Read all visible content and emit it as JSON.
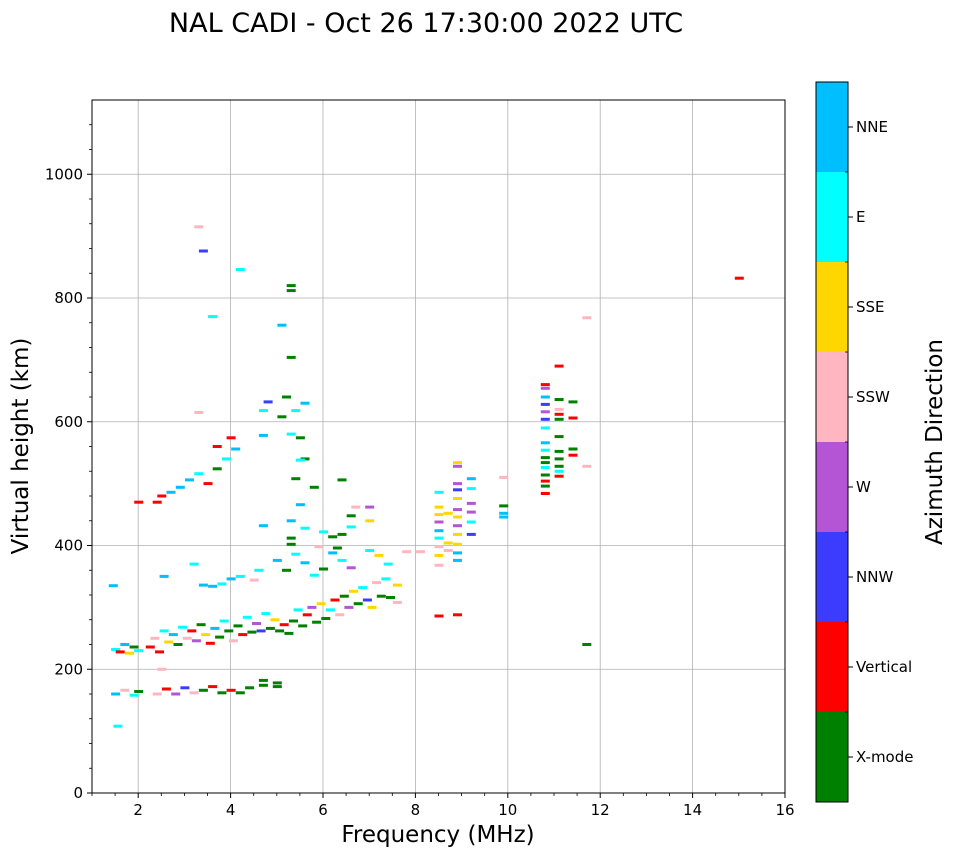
{
  "chart_data": {
    "type": "scatter",
    "title": "NAL CADI - Oct 26 17:30:00 2022 UTC",
    "xlabel": "Frequency (MHz)",
    "ylabel": "Virtual height (km)",
    "xlim": [
      1,
      16
    ],
    "ylim": [
      0,
      1120
    ],
    "xticks": [
      2,
      4,
      6,
      8,
      10,
      12,
      14,
      16
    ],
    "yticks": [
      0,
      200,
      400,
      600,
      800,
      1000
    ],
    "grid": true,
    "colorbar": {
      "label": "Azimuth Direction",
      "entries": [
        {
          "name": "X-mode",
          "color": "#008000"
        },
        {
          "name": "Vertical",
          "color": "#ff0000"
        },
        {
          "name": "NNW",
          "color": "#3c3cff"
        },
        {
          "name": "W",
          "color": "#b455d6"
        },
        {
          "name": "SSW",
          "color": "#ffb6c1"
        },
        {
          "name": "SSE",
          "color": "#ffd700"
        },
        {
          "name": "E",
          "color": "#00ffff"
        },
        {
          "name": "NNE",
          "color": "#00bfff"
        }
      ]
    },
    "points": [
      {
        "f": 1.5,
        "h": 232,
        "d": "E"
      },
      {
        "f": 1.6,
        "h": 228,
        "d": "Vertical"
      },
      {
        "f": 1.7,
        "h": 240,
        "d": "NNE"
      },
      {
        "f": 1.8,
        "h": 226,
        "d": "SSE"
      },
      {
        "f": 1.9,
        "h": 236,
        "d": "X-mode"
      },
      {
        "f": 2.0,
        "h": 230,
        "d": "E"
      },
      {
        "f": 1.5,
        "h": 160,
        "d": "NNE"
      },
      {
        "f": 1.7,
        "h": 166,
        "d": "SSW"
      },
      {
        "f": 1.9,
        "h": 158,
        "d": "E"
      },
      {
        "f": 2.0,
        "h": 164,
        "d": "X-mode"
      },
      {
        "f": 1.45,
        "h": 335,
        "d": "NNE"
      },
      {
        "f": 1.55,
        "h": 108,
        "d": "E"
      },
      {
        "f": 2.0,
        "h": 470,
        "d": "Vertical"
      },
      {
        "f": 2.25,
        "h": 236,
        "d": "Vertical"
      },
      {
        "f": 2.35,
        "h": 250,
        "d": "SSW"
      },
      {
        "f": 2.45,
        "h": 228,
        "d": "Vertical"
      },
      {
        "f": 2.55,
        "h": 262,
        "d": "E"
      },
      {
        "f": 2.65,
        "h": 244,
        "d": "SSE"
      },
      {
        "f": 2.75,
        "h": 256,
        "d": "NNE"
      },
      {
        "f": 2.85,
        "h": 240,
        "d": "X-mode"
      },
      {
        "f": 2.95,
        "h": 268,
        "d": "E"
      },
      {
        "f": 3.05,
        "h": 250,
        "d": "SSW"
      },
      {
        "f": 3.15,
        "h": 262,
        "d": "Vertical"
      },
      {
        "f": 3.25,
        "h": 246,
        "d": "W"
      },
      {
        "f": 3.35,
        "h": 272,
        "d": "X-mode"
      },
      {
        "f": 3.45,
        "h": 256,
        "d": "SSE"
      },
      {
        "f": 3.55,
        "h": 242,
        "d": "Vertical"
      },
      {
        "f": 3.65,
        "h": 266,
        "d": "NNE"
      },
      {
        "f": 3.75,
        "h": 252,
        "d": "X-mode"
      },
      {
        "f": 3.85,
        "h": 278,
        "d": "E"
      },
      {
        "f": 3.95,
        "h": 262,
        "d": "X-mode"
      },
      {
        "f": 4.05,
        "h": 246,
        "d": "SSW"
      },
      {
        "f": 4.15,
        "h": 270,
        "d": "X-mode"
      },
      {
        "f": 4.25,
        "h": 256,
        "d": "Vertical"
      },
      {
        "f": 4.35,
        "h": 284,
        "d": "E"
      },
      {
        "f": 4.45,
        "h": 260,
        "d": "X-mode"
      },
      {
        "f": 4.55,
        "h": 274,
        "d": "W"
      },
      {
        "f": 4.65,
        "h": 262,
        "d": "NNW"
      },
      {
        "f": 4.75,
        "h": 290,
        "d": "E"
      },
      {
        "f": 4.85,
        "h": 266,
        "d": "X-mode"
      },
      {
        "f": 4.95,
        "h": 280,
        "d": "SSE"
      },
      {
        "f": 5.05,
        "h": 262,
        "d": "X-mode"
      },
      {
        "f": 5.15,
        "h": 272,
        "d": "Vertical"
      },
      {
        "f": 5.25,
        "h": 258,
        "d": "X-mode"
      },
      {
        "f": 5.35,
        "h": 278,
        "d": "X-mode"
      },
      {
        "f": 5.45,
        "h": 296,
        "d": "E"
      },
      {
        "f": 5.55,
        "h": 270,
        "d": "X-mode"
      },
      {
        "f": 5.65,
        "h": 288,
        "d": "Vertical"
      },
      {
        "f": 5.75,
        "h": 300,
        "d": "W"
      },
      {
        "f": 5.85,
        "h": 276,
        "d": "X-mode"
      },
      {
        "f": 5.95,
        "h": 306,
        "d": "SSE"
      },
      {
        "f": 6.05,
        "h": 282,
        "d": "X-mode"
      },
      {
        "f": 6.15,
        "h": 296,
        "d": "E"
      },
      {
        "f": 6.25,
        "h": 312,
        "d": "Vertical"
      },
      {
        "f": 6.35,
        "h": 288,
        "d": "SSW"
      },
      {
        "f": 6.45,
        "h": 318,
        "d": "X-mode"
      },
      {
        "f": 6.55,
        "h": 300,
        "d": "W"
      },
      {
        "f": 6.65,
        "h": 326,
        "d": "SSE"
      },
      {
        "f": 6.75,
        "h": 306,
        "d": "X-mode"
      },
      {
        "f": 6.85,
        "h": 332,
        "d": "E"
      },
      {
        "f": 6.95,
        "h": 312,
        "d": "NNW"
      },
      {
        "f": 7.05,
        "h": 300,
        "d": "SSE"
      },
      {
        "f": 7.15,
        "h": 340,
        "d": "SSW"
      },
      {
        "f": 7.25,
        "h": 318,
        "d": "X-mode"
      },
      {
        "f": 7.35,
        "h": 346,
        "d": "E"
      },
      {
        "f": 7.45,
        "h": 316,
        "d": "X-mode"
      },
      {
        "f": 7.6,
        "h": 336,
        "d": "SSE"
      },
      {
        "f": 7.6,
        "h": 308,
        "d": "SSW"
      },
      {
        "f": 2.55,
        "h": 350,
        "d": "NNE"
      },
      {
        "f": 3.2,
        "h": 370,
        "d": "E"
      },
      {
        "f": 3.4,
        "h": 336,
        "d": "NNE"
      },
      {
        "f": 3.6,
        "h": 334,
        "d": "NNE"
      },
      {
        "f": 3.8,
        "h": 338,
        "d": "E"
      },
      {
        "f": 4.0,
        "h": 346,
        "d": "NNE"
      },
      {
        "f": 4.2,
        "h": 350,
        "d": "E"
      },
      {
        "f": 4.5,
        "h": 344,
        "d": "SSW"
      },
      {
        "f": 4.6,
        "h": 360,
        "d": "E"
      },
      {
        "f": 5.0,
        "h": 376,
        "d": "NNE"
      },
      {
        "f": 5.2,
        "h": 360,
        "d": "X-mode"
      },
      {
        "f": 5.4,
        "h": 386,
        "d": "E"
      },
      {
        "f": 5.6,
        "h": 372,
        "d": "NNE"
      },
      {
        "f": 5.8,
        "h": 352,
        "d": "E"
      },
      {
        "f": 6.0,
        "h": 362,
        "d": "X-mode"
      },
      {
        "f": 6.2,
        "h": 388,
        "d": "NNE"
      },
      {
        "f": 6.4,
        "h": 376,
        "d": "E"
      },
      {
        "f": 6.6,
        "h": 364,
        "d": "W"
      },
      {
        "f": 7.0,
        "h": 392,
        "d": "E"
      },
      {
        "f": 7.2,
        "h": 384,
        "d": "SSE"
      },
      {
        "f": 7.4,
        "h": 370,
        "d": "E"
      },
      {
        "f": 7.8,
        "h": 390,
        "d": "SSW"
      },
      {
        "f": 8.1,
        "h": 390,
        "d": "SSW"
      },
      {
        "f": 2.4,
        "h": 160,
        "d": "SSW"
      },
      {
        "f": 2.6,
        "h": 168,
        "d": "Vertical"
      },
      {
        "f": 2.8,
        "h": 160,
        "d": "W"
      },
      {
        "f": 3.0,
        "h": 170,
        "d": "NNW"
      },
      {
        "f": 3.2,
        "h": 162,
        "d": "SSW"
      },
      {
        "f": 3.4,
        "h": 166,
        "d": "X-mode"
      },
      {
        "f": 3.6,
        "h": 172,
        "d": "Vertical"
      },
      {
        "f": 3.8,
        "h": 162,
        "d": "X-mode"
      },
      {
        "f": 4.0,
        "h": 166,
        "d": "Vertical"
      },
      {
        "f": 4.2,
        "h": 162,
        "d": "X-mode"
      },
      {
        "f": 4.4,
        "h": 170,
        "d": "X-mode"
      },
      {
        "f": 4.7,
        "h": 174,
        "d": "X-mode"
      },
      {
        "f": 5.0,
        "h": 172,
        "d": "X-mode"
      },
      {
        "f": 4.7,
        "h": 182,
        "d": "X-mode"
      },
      {
        "f": 5.0,
        "h": 178,
        "d": "X-mode"
      },
      {
        "f": 2.5,
        "h": 200,
        "d": "SSW"
      },
      {
        "f": 2.4,
        "h": 470,
        "d": "Vertical"
      },
      {
        "f": 2.5,
        "h": 480,
        "d": "Vertical"
      },
      {
        "f": 2.7,
        "h": 486,
        "d": "NNE"
      },
      {
        "f": 2.9,
        "h": 494,
        "d": "NNE"
      },
      {
        "f": 3.1,
        "h": 506,
        "d": "NNE"
      },
      {
        "f": 3.3,
        "h": 516,
        "d": "E"
      },
      {
        "f": 3.5,
        "h": 500,
        "d": "Vertical"
      },
      {
        "f": 3.7,
        "h": 524,
        "d": "X-mode"
      },
      {
        "f": 3.9,
        "h": 540,
        "d": "E"
      },
      {
        "f": 4.1,
        "h": 556,
        "d": "NNE"
      },
      {
        "f": 3.7,
        "h": 560,
        "d": "Vertical"
      },
      {
        "f": 4.0,
        "h": 574,
        "d": "Vertical"
      },
      {
        "f": 3.3,
        "h": 615,
        "d": "SSW"
      },
      {
        "f": 3.4,
        "h": 876,
        "d": "NNW"
      },
      {
        "f": 3.3,
        "h": 915,
        "d": "SSW"
      },
      {
        "f": 4.2,
        "h": 846,
        "d": "E"
      },
      {
        "f": 3.6,
        "h": 770,
        "d": "E"
      },
      {
        "f": 4.7,
        "h": 618,
        "d": "E"
      },
      {
        "f": 4.8,
        "h": 632,
        "d": "NNW"
      },
      {
        "f": 4.7,
        "h": 578,
        "d": "NNE"
      },
      {
        "f": 5.1,
        "h": 608,
        "d": "X-mode"
      },
      {
        "f": 5.2,
        "h": 640,
        "d": "X-mode"
      },
      {
        "f": 5.4,
        "h": 618,
        "d": "E"
      },
      {
        "f": 5.6,
        "h": 630,
        "d": "NNE"
      },
      {
        "f": 5.3,
        "h": 580,
        "d": "E"
      },
      {
        "f": 5.5,
        "h": 574,
        "d": "X-mode"
      },
      {
        "f": 5.1,
        "h": 756,
        "d": "NNE"
      },
      {
        "f": 5.3,
        "h": 704,
        "d": "X-mode"
      },
      {
        "f": 5.3,
        "h": 812,
        "d": "X-mode"
      },
      {
        "f": 5.3,
        "h": 820,
        "d": "X-mode"
      },
      {
        "f": 5.6,
        "h": 540,
        "d": "X-mode"
      },
      {
        "f": 5.5,
        "h": 538,
        "d": "E"
      },
      {
        "f": 5.4,
        "h": 508,
        "d": "X-mode"
      },
      {
        "f": 5.8,
        "h": 494,
        "d": "X-mode"
      },
      {
        "f": 5.5,
        "h": 466,
        "d": "NNE"
      },
      {
        "f": 5.3,
        "h": 440,
        "d": "NNE"
      },
      {
        "f": 5.6,
        "h": 428,
        "d": "E"
      },
      {
        "f": 5.3,
        "h": 412,
        "d": "X-mode"
      },
      {
        "f": 5.3,
        "h": 402,
        "d": "X-mode"
      },
      {
        "f": 6.0,
        "h": 422,
        "d": "E"
      },
      {
        "f": 6.2,
        "h": 414,
        "d": "X-mode"
      },
      {
        "f": 6.4,
        "h": 506,
        "d": "X-mode"
      },
      {
        "f": 6.7,
        "h": 462,
        "d": "SSW"
      },
      {
        "f": 7.0,
        "h": 462,
        "d": "W"
      },
      {
        "f": 6.6,
        "h": 448,
        "d": "X-mode"
      },
      {
        "f": 7.0,
        "h": 440,
        "d": "SSE"
      },
      {
        "f": 6.6,
        "h": 430,
        "d": "E"
      },
      {
        "f": 6.4,
        "h": 418,
        "d": "X-mode"
      },
      {
        "f": 4.7,
        "h": 432,
        "d": "NNE"
      },
      {
        "f": 5.9,
        "h": 398,
        "d": "SSW"
      },
      {
        "f": 6.3,
        "h": 396,
        "d": "X-mode"
      },
      {
        "f": 8.5,
        "h": 486,
        "d": "E"
      },
      {
        "f": 8.5,
        "h": 462,
        "d": "SSE"
      },
      {
        "f": 8.5,
        "h": 450,
        "d": "SSE"
      },
      {
        "f": 8.5,
        "h": 438,
        "d": "W"
      },
      {
        "f": 8.5,
        "h": 424,
        "d": "NNE"
      },
      {
        "f": 8.5,
        "h": 412,
        "d": "E"
      },
      {
        "f": 8.5,
        "h": 398,
        "d": "SSW"
      },
      {
        "f": 8.5,
        "h": 384,
        "d": "SSE"
      },
      {
        "f": 8.5,
        "h": 368,
        "d": "SSW"
      },
      {
        "f": 8.7,
        "h": 452,
        "d": "SSE"
      },
      {
        "f": 8.7,
        "h": 404,
        "d": "SSE"
      },
      {
        "f": 8.7,
        "h": 392,
        "d": "SSW"
      },
      {
        "f": 8.9,
        "h": 534,
        "d": "SSE"
      },
      {
        "f": 8.9,
        "h": 528,
        "d": "W"
      },
      {
        "f": 8.9,
        "h": 500,
        "d": "W"
      },
      {
        "f": 8.9,
        "h": 490,
        "d": "NNW"
      },
      {
        "f": 8.9,
        "h": 476,
        "d": "SSE"
      },
      {
        "f": 8.9,
        "h": 458,
        "d": "W"
      },
      {
        "f": 8.9,
        "h": 446,
        "d": "SSE"
      },
      {
        "f": 8.9,
        "h": 432,
        "d": "W"
      },
      {
        "f": 8.9,
        "h": 418,
        "d": "SSE"
      },
      {
        "f": 8.9,
        "h": 402,
        "d": "SSE"
      },
      {
        "f": 8.9,
        "h": 388,
        "d": "NNE"
      },
      {
        "f": 8.9,
        "h": 376,
        "d": "NNE"
      },
      {
        "f": 9.2,
        "h": 508,
        "d": "NNE"
      },
      {
        "f": 9.2,
        "h": 492,
        "d": "E"
      },
      {
        "f": 9.2,
        "h": 468,
        "d": "W"
      },
      {
        "f": 9.2,
        "h": 454,
        "d": "W"
      },
      {
        "f": 9.2,
        "h": 438,
        "d": "E"
      },
      {
        "f": 9.2,
        "h": 418,
        "d": "NNW"
      },
      {
        "f": 8.5,
        "h": 286,
        "d": "Vertical"
      },
      {
        "f": 8.9,
        "h": 288,
        "d": "Vertical"
      },
      {
        "f": 9.9,
        "h": 510,
        "d": "SSW"
      },
      {
        "f": 9.9,
        "h": 464,
        "d": "X-mode"
      },
      {
        "f": 9.9,
        "h": 452,
        "d": "NNE"
      },
      {
        "f": 9.9,
        "h": 446,
        "d": "NNE"
      },
      {
        "f": 10.8,
        "h": 660,
        "d": "Vertical"
      },
      {
        "f": 10.8,
        "h": 654,
        "d": "W"
      },
      {
        "f": 10.8,
        "h": 640,
        "d": "NNE"
      },
      {
        "f": 10.8,
        "h": 628,
        "d": "NNW"
      },
      {
        "f": 10.8,
        "h": 616,
        "d": "W"
      },
      {
        "f": 10.8,
        "h": 604,
        "d": "NNW"
      },
      {
        "f": 10.8,
        "h": 590,
        "d": "E"
      },
      {
        "f": 10.8,
        "h": 566,
        "d": "NNE"
      },
      {
        "f": 10.8,
        "h": 554,
        "d": "E"
      },
      {
        "f": 10.8,
        "h": 542,
        "d": "X-mode"
      },
      {
        "f": 10.8,
        "h": 534,
        "d": "X-mode"
      },
      {
        "f": 10.8,
        "h": 526,
        "d": "E"
      },
      {
        "f": 10.8,
        "h": 514,
        "d": "X-mode"
      },
      {
        "f": 10.8,
        "h": 504,
        "d": "Vertical"
      },
      {
        "f": 10.8,
        "h": 496,
        "d": "X-mode"
      },
      {
        "f": 10.8,
        "h": 484,
        "d": "Vertical"
      },
      {
        "f": 11.1,
        "h": 690,
        "d": "Vertical"
      },
      {
        "f": 11.1,
        "h": 636,
        "d": "X-mode"
      },
      {
        "f": 11.1,
        "h": 620,
        "d": "SSW"
      },
      {
        "f": 11.1,
        "h": 612,
        "d": "Vertical"
      },
      {
        "f": 11.1,
        "h": 604,
        "d": "X-mode"
      },
      {
        "f": 11.1,
        "h": 576,
        "d": "X-mode"
      },
      {
        "f": 11.1,
        "h": 552,
        "d": "X-mode"
      },
      {
        "f": 11.1,
        "h": 540,
        "d": "X-mode"
      },
      {
        "f": 11.1,
        "h": 528,
        "d": "X-mode"
      },
      {
        "f": 11.1,
        "h": 520,
        "d": "E"
      },
      {
        "f": 11.1,
        "h": 512,
        "d": "Vertical"
      },
      {
        "f": 11.4,
        "h": 632,
        "d": "X-mode"
      },
      {
        "f": 11.4,
        "h": 606,
        "d": "Vertical"
      },
      {
        "f": 11.4,
        "h": 556,
        "d": "X-mode"
      },
      {
        "f": 11.4,
        "h": 546,
        "d": "Vertical"
      },
      {
        "f": 11.7,
        "h": 768,
        "d": "SSW"
      },
      {
        "f": 11.7,
        "h": 528,
        "d": "SSW"
      },
      {
        "f": 11.7,
        "h": 240,
        "d": "X-mode"
      },
      {
        "f": 15.0,
        "h": 832,
        "d": "Vertical"
      }
    ]
  }
}
